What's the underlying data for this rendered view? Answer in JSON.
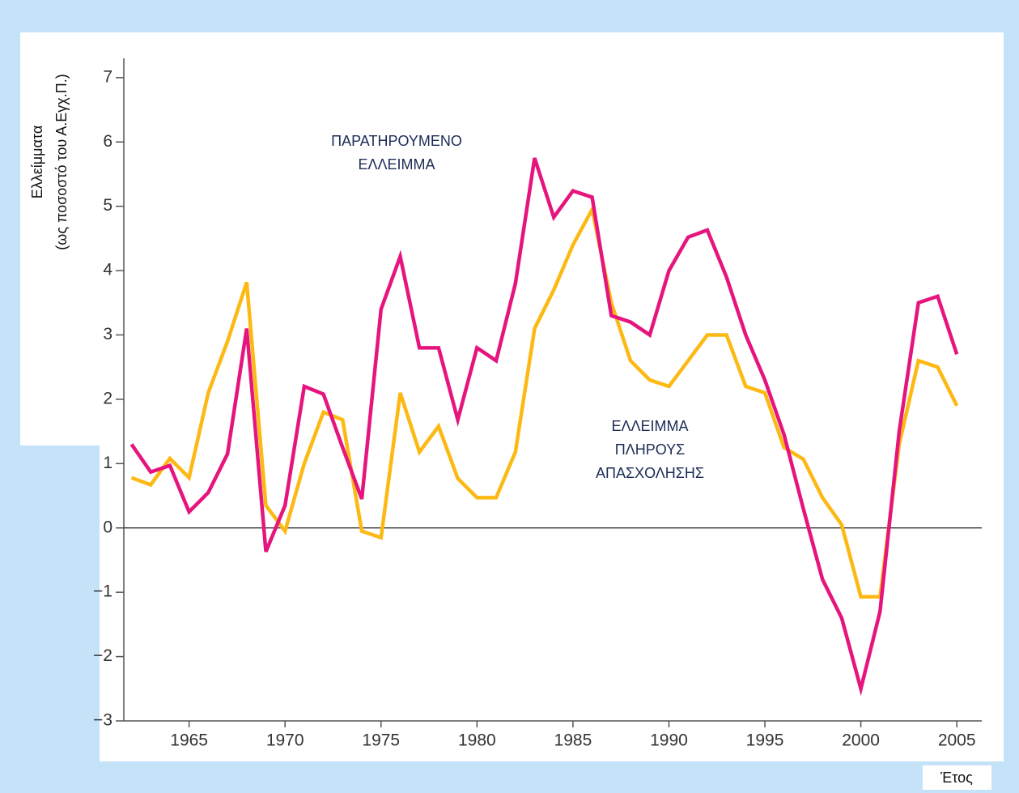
{
  "chart_data": {
    "type": "line",
    "y_label_lines": [
      "Ελλείμματα",
      "(ως ποσοστό του Α.Εγχ.Π.)"
    ],
    "x_label": "Έτος",
    "annotations": [
      {
        "lines": [
          "ΠΑΡΑΤΗΡΟΥΜΕΝΟ",
          "ΕΛΛΕΙΜΜΑ"
        ]
      },
      {
        "lines": [
          "ΕΛΛΕΙΜΜΑ",
          "ΠΛΗΡΟΥΣ",
          "ΑΠΑΣΧΟΛΗΣΗΣ"
        ]
      }
    ],
    "x": [
      1962,
      1963,
      1964,
      1965,
      1966,
      1967,
      1968,
      1969,
      1970,
      1971,
      1972,
      1973,
      1974,
      1975,
      1976,
      1977,
      1978,
      1979,
      1980,
      1981,
      1982,
      1983,
      1984,
      1985,
      1986,
      1987,
      1988,
      1989,
      1990,
      1991,
      1992,
      1993,
      1994,
      1995,
      1996,
      1997,
      1998,
      1999,
      2000,
      2001,
      2002,
      2003,
      2004,
      2005
    ],
    "series": [
      {
        "color": "#fdb913",
        "values": [
          0.78,
          0.67,
          1.08,
          0.78,
          2.1,
          2.9,
          3.82,
          0.35,
          -0.05,
          1.0,
          1.8,
          1.68,
          -0.05,
          -0.15,
          2.1,
          1.18,
          1.58,
          0.77,
          0.47,
          0.47,
          1.18,
          3.1,
          3.7,
          4.4,
          4.95,
          3.5,
          2.6,
          2.3,
          2.2,
          2.6,
          3.0,
          3.0,
          2.2,
          2.1,
          1.25,
          1.07,
          0.47,
          0.05,
          -1.07,
          -1.07,
          1.3,
          2.6,
          2.5,
          1.9
        ]
      },
      {
        "color": "#e6157d",
        "values": [
          1.3,
          0.87,
          0.97,
          0.25,
          0.55,
          1.15,
          3.1,
          -0.37,
          0.35,
          2.2,
          2.08,
          1.25,
          0.45,
          3.4,
          4.22,
          2.8,
          2.8,
          1.68,
          2.8,
          2.6,
          3.8,
          5.75,
          4.83,
          5.24,
          5.14,
          3.3,
          3.2,
          3.0,
          4.0,
          4.52,
          4.63,
          3.9,
          3.0,
          2.3,
          1.45,
          0.3,
          -0.8,
          -1.4,
          -2.5,
          -1.3,
          1.5,
          3.5,
          3.6,
          2.7
        ]
      }
    ],
    "xlim": [
      1961.6,
      2006.3
    ],
    "xticks": [
      1965,
      1970,
      1975,
      1980,
      1985,
      1990,
      1995,
      2000,
      2005
    ],
    "ylim": [
      -3,
      7.3
    ],
    "yticks": [
      {
        "value": -3,
        "label": "−3"
      },
      {
        "value": -2,
        "label": "−2"
      },
      {
        "value": -1,
        "label": "−1"
      },
      0,
      1,
      2,
      3,
      4,
      5,
      6,
      7
    ],
    "zero_line": true
  }
}
